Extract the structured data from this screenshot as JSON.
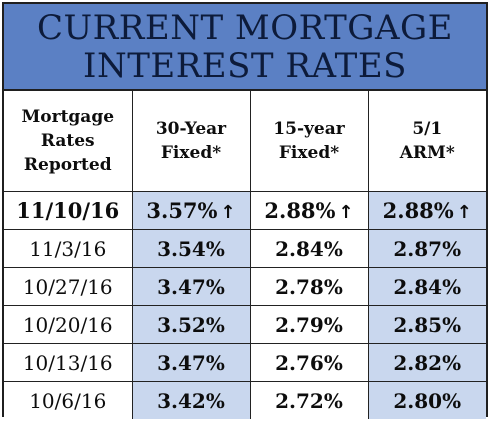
{
  "title": {
    "line1": "CURRENT MORTGAGE",
    "line2": "INTEREST RATES"
  },
  "headers": [
    [
      "Mortgage",
      "Rates",
      "Reported"
    ],
    [
      "30-Year",
      "Fixed*"
    ],
    [
      "15-year",
      "Fixed*"
    ],
    [
      "5/1",
      "ARM*"
    ]
  ],
  "rows": [
    {
      "date": "11/10/16",
      "fixed30": "3.57%",
      "fixed15": "2.88%",
      "arm51": "2.88%",
      "arrow": "↑"
    },
    {
      "date": "11/3/16",
      "fixed30": "3.54%",
      "fixed15": "2.84%",
      "arm51": "2.87%"
    },
    {
      "date": "10/27/16",
      "fixed30": "3.47%",
      "fixed15": "2.78%",
      "arm51": "2.84%"
    },
    {
      "date": "10/20/16",
      "fixed30": "3.52%",
      "fixed15": "2.79%",
      "arm51": "2.85%"
    },
    {
      "date": "10/13/16",
      "fixed30": "3.47%",
      "fixed15": "2.76%",
      "arm51": "2.82%"
    },
    {
      "date": "10/6/16",
      "fixed30": "3.42%",
      "fixed15": "2.72%",
      "arm51": "2.80%"
    }
  ],
  "colors": {
    "title_background": "#5b80c4",
    "highlight_cell": "#c9d7ee"
  }
}
